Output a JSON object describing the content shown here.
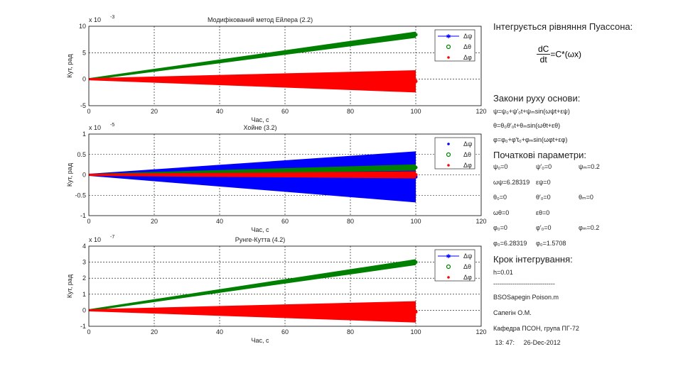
{
  "chart_data": [
    {
      "type": "line",
      "title": "Модифікований метод Ейлера (2.2)",
      "xlabel": "Час, с",
      "ylabel": "Кут, рад",
      "multiplier": "x 10",
      "exponent": "-3",
      "xlim": [
        0,
        120
      ],
      "ylim": [
        -5,
        10
      ],
      "xticks": [
        "0",
        "20",
        "40",
        "60",
        "80",
        "100",
        "120"
      ],
      "yticks": [
        "-5",
        "0",
        "5",
        "10"
      ],
      "grid": true,
      "legend_position": "top-right",
      "series": [
        {
          "name": "Δψ",
          "color": "#0000ff",
          "kind": "line-star",
          "t_end": 100,
          "value_end": 0,
          "amplitude_end": 0
        },
        {
          "name": "Δθ",
          "color": "#008000",
          "kind": "band",
          "t_end": 100,
          "value_end": 8.4,
          "amplitude_end": 0.4
        },
        {
          "name": "Δφ",
          "color": "#ff0000",
          "kind": "band",
          "t_end": 100,
          "value_end": -0.4,
          "amplitude_end": 1.9
        }
      ]
    },
    {
      "type": "line",
      "title": "Хойне (3.2)",
      "xlabel": "Час, с",
      "ylabel": "Кут, рад",
      "multiplier": "x 10",
      "exponent": "-5",
      "xlim": [
        0,
        120
      ],
      "ylim": [
        -1,
        1
      ],
      "xticks": [
        "0",
        "20",
        "40",
        "60",
        "80",
        "100",
        "120"
      ],
      "yticks": [
        "-1",
        "-0.5",
        "0",
        "0.5",
        "1"
      ],
      "grid": true,
      "legend_position": "top-right",
      "series": [
        {
          "name": "Δψ",
          "color": "#0000ff",
          "kind": "band",
          "t_end": 100,
          "value_end": -0.05,
          "amplitude_end": 0.6
        },
        {
          "name": "Δθ",
          "color": "#008000",
          "kind": "band",
          "t_end": 100,
          "value_end": 0.18,
          "amplitude_end": 0.05
        },
        {
          "name": "Δφ",
          "color": "#ff0000",
          "kind": "band",
          "t_end": 100,
          "value_end": 0.0,
          "amplitude_end": 0.06
        }
      ]
    },
    {
      "type": "line",
      "title": "Рунге-Кутта (4.2)",
      "xlabel": "Час, с",
      "ylabel": "Кут, рад",
      "multiplier": "x 10",
      "exponent": "-7",
      "xlim": [
        0,
        120
      ],
      "ylim": [
        -1,
        4
      ],
      "xticks": [
        "0",
        "20",
        "40",
        "60",
        "80",
        "100",
        "120"
      ],
      "yticks": [
        "-1",
        "0",
        "1",
        "2",
        "3",
        "4"
      ],
      "grid": true,
      "legend_position": "top-right",
      "series": [
        {
          "name": "Δψ",
          "color": "#0000ff",
          "kind": "line-star",
          "t_end": 100,
          "value_end": 0,
          "amplitude_end": 0
        },
        {
          "name": "Δθ",
          "color": "#008000",
          "kind": "band",
          "t_end": 100,
          "value_end": 3.0,
          "amplitude_end": 0.12
        },
        {
          "name": "Δφ",
          "color": "#ff0000",
          "kind": "band",
          "t_end": 100,
          "value_end": -0.1,
          "amplitude_end": 0.6
        }
      ]
    }
  ],
  "side": {
    "title": "Інтегрується рівняння Пуассона:",
    "formula_num": "dC",
    "formula_den": "dt",
    "formula_rhs": "=C*(ωx)",
    "laws_title": "Закони руху основи:",
    "laws": [
      "ψ=ψ₀+ψ′₀t+ψₘsin(ωψt+εψ)",
      "θ=θ₀θ′₀t+θₘsin(ωθt+εθ)",
      "φ=φ₀+φ′t₀+φₘsin(ωφt+εφ)"
    ],
    "params_title": "Початкові параметри:",
    "params_rows": [
      [
        "ψ₀=0",
        "ψ′₀=0",
        "ψₘ=0.2"
      ],
      [
        "ωψ=6.28319",
        "εψ=0",
        ""
      ],
      [
        "θ₀=0",
        "θ′₀=0",
        "θₘ=0"
      ],
      [
        "ωθ=0",
        "εθ=0",
        ""
      ],
      [
        "φ₀=0",
        "φ′₀=0",
        "φₘ=0.2"
      ],
      [
        "φ₀=6.28319",
        "φ₀=1.5708",
        ""
      ]
    ],
    "step_title": "Крок інтегрування:",
    "step_value": "h=0.01",
    "separator": "-----------------------------",
    "file": "BSOSapegin Poison.m",
    "author": "Сапегін О.М.",
    "dept": "Кафедра ПСОН, група ПГ-72",
    "time": "13: 47:",
    "date": "26-Dec-2012"
  }
}
